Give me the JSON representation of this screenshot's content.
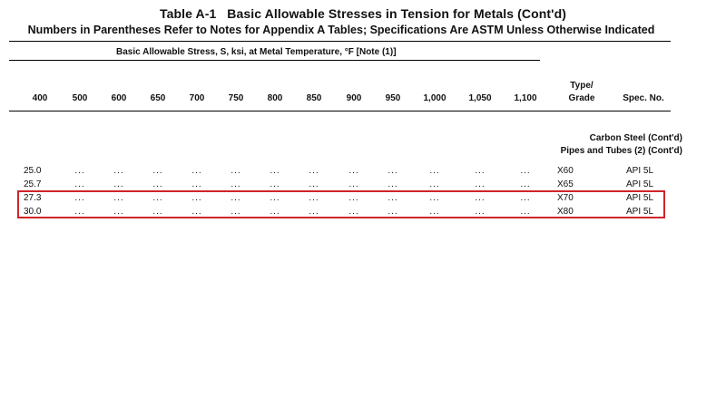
{
  "title": "Table A-1   Basic Allowable Stresses in Tension for Metals (Cont'd)",
  "subtitle": "Numbers in Parentheses Refer to Notes for Appendix A Tables; Specifications Are ASTM Unless Otherwise Indicated",
  "span_caption": "Basic Allowable Stress, S, ksi, at Metal Temperature, °F [Note (1)]",
  "temperatures": [
    "400",
    "500",
    "600",
    "650",
    "700",
    "750",
    "800",
    "850",
    "900",
    "950",
    "1,000",
    "1,050",
    "1,100"
  ],
  "headers": {
    "grade_line1": "Type/",
    "grade_line2": "Grade",
    "spec": "Spec. No."
  },
  "section": {
    "material": "Carbon Steel (Cont'd)",
    "product": "Pipes and Tubes (2) (Cont'd)"
  },
  "empty_marker": "...",
  "rows": [
    {
      "stress_400": "25.0",
      "grade": "X60",
      "spec": "API 5L",
      "highlighted": false
    },
    {
      "stress_400": "25.7",
      "grade": "X65",
      "spec": "API 5L",
      "highlighted": false
    },
    {
      "stress_400": "27.3",
      "grade": "X70",
      "spec": "API 5L",
      "highlighted": true
    },
    {
      "stress_400": "30.0",
      "grade": "X80",
      "spec": "API 5L",
      "highlighted": true
    }
  ],
  "highlight_color": "#d1232a"
}
